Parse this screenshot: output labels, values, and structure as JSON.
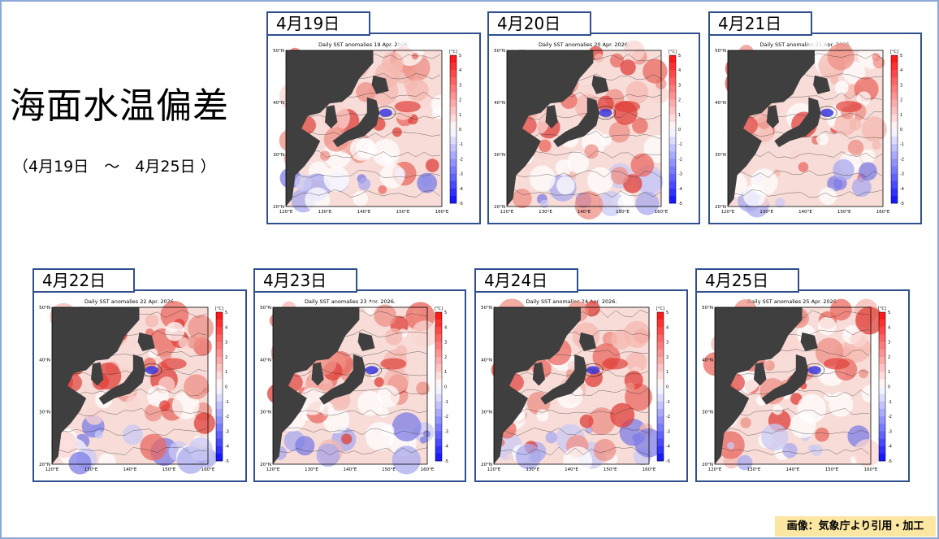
{
  "slide": {
    "title": "海面水温偏差",
    "date_range": "（4月19日　～　4月25日 ）",
    "credit": "画像：気象庁より引用・加工"
  },
  "panels": [
    {
      "date_label": "4月19日",
      "map_title": "Daily SST anomalies 19 Apr. 2026."
    },
    {
      "date_label": "4月20日",
      "map_title": "Daily SST anomalies 20 Apr. 2026."
    },
    {
      "date_label": "4月21日",
      "map_title": "Daily SST anomalies 21 Apr. 2026."
    },
    {
      "date_label": "4月22日",
      "map_title": "Daily SST anomalies 22 Apr. 2026."
    },
    {
      "date_label": "4月23日",
      "map_title": "Daily SST anomalies 23 Apr. 2026."
    },
    {
      "date_label": "4月24日",
      "map_title": "Daily SST anomalies 24 Apr. 2026."
    },
    {
      "date_label": "4月25日",
      "map_title": "Daily SST anomalies 25 Apr. 2026."
    }
  ],
  "map_axes": {
    "lat_labels": [
      "50°N",
      "40°N",
      "30°N",
      "20°N"
    ],
    "lon_labels": [
      "120°E",
      "130°E",
      "140°E",
      "150°E",
      "160°E"
    ],
    "unit": "[°C]",
    "scale_ticks": [
      "5",
      "4",
      "3",
      "2",
      "1",
      "0",
      "-1",
      "-2",
      "-3",
      "-4",
      "-5"
    ]
  },
  "colors": {
    "frame": "#2f4f8f",
    "slide_border": "#8ea9d8",
    "land": "#3f3f3f",
    "warm": "#e0403a",
    "cold": "#3a3ae0",
    "credit_bg": "#fbe7a1"
  }
}
